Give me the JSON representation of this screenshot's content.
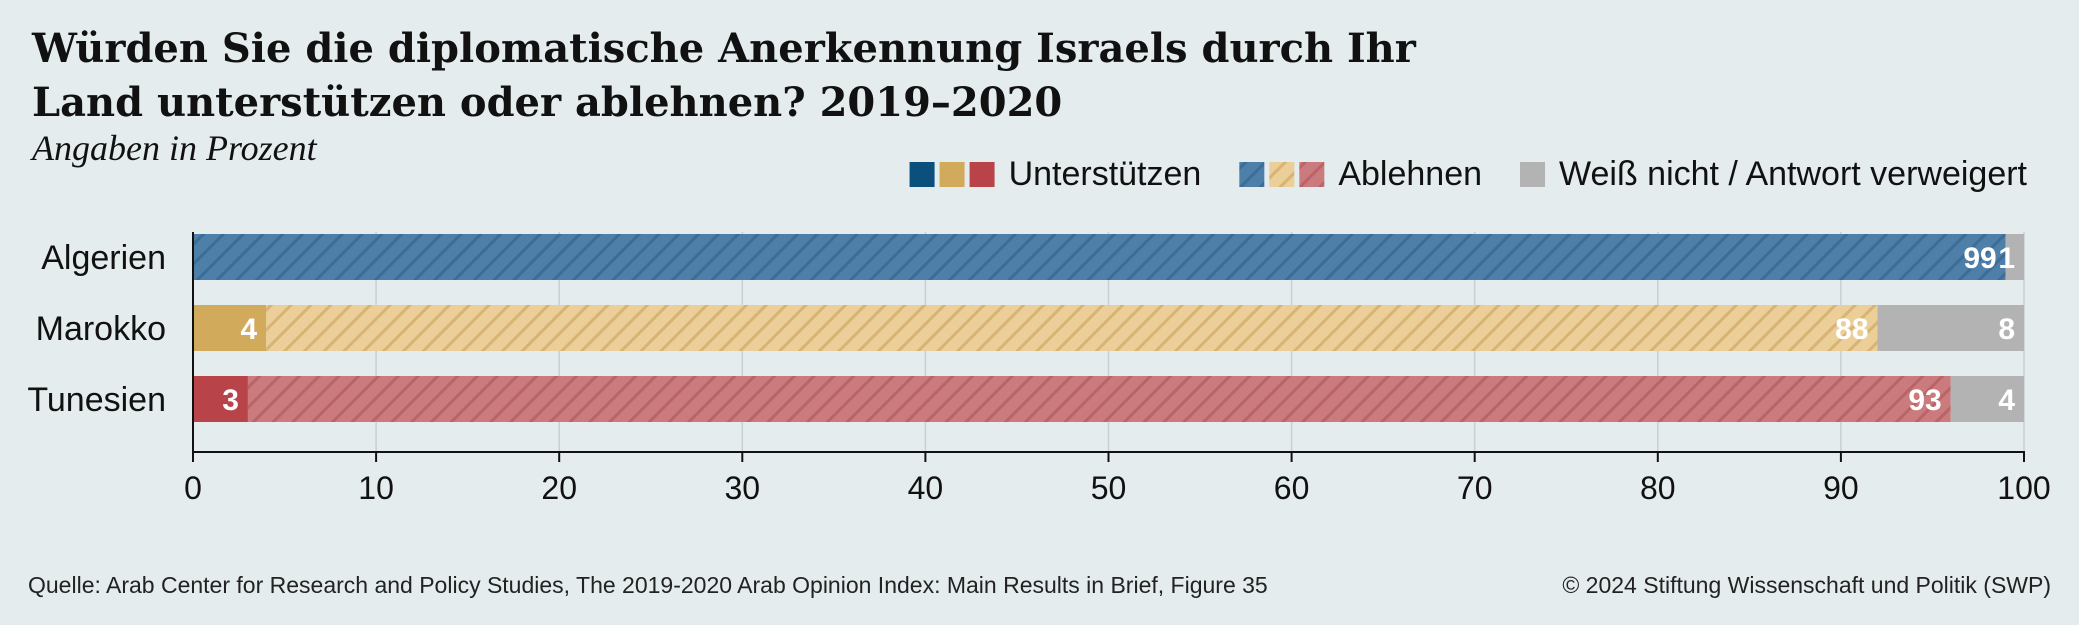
{
  "header": {
    "title": "Würden Sie die diplomatische Anerkennung Israels durch Ihr Land unterstützen oder ablehnen? 2019–2020",
    "subtitle": "Angaben in Prozent"
  },
  "footer": {
    "source": "Quelle: Arab Center for Research and Policy Studies, The 2019-2020 Arab Opinion Index: Main Results in Brief, Figure 35",
    "copyright": "© 2024 Stiftung Wissenschaft und Politik (SWP)"
  },
  "colors": {
    "background": "#e4ecee",
    "support": [
      "#0b4f7c",
      "#d2aa5c",
      "#b8444a"
    ],
    "oppose_base": [
      "#4e7fa8",
      "#eccf98",
      "#cb7b7d"
    ],
    "oppose_stripe": [
      "#3b6d97",
      "#d7b474",
      "#b96466"
    ],
    "unknown": "#b3b3b3",
    "grid": "#c6d1d4"
  },
  "chart_data": {
    "type": "bar",
    "orientation": "horizontal",
    "stacked": true,
    "categories": [
      "Algerien",
      "Marokko",
      "Tunesien"
    ],
    "series": [
      {
        "name": "Unterstützen",
        "values": [
          0,
          4,
          3
        ]
      },
      {
        "name": "Ablehnen",
        "values": [
          99,
          88,
          93
        ]
      },
      {
        "name": "Weiß nicht / Antwort verweigert",
        "values": [
          1,
          8,
          4
        ]
      }
    ],
    "xlim": [
      0,
      100
    ],
    "xticks": [
      0,
      10,
      20,
      30,
      40,
      50,
      60,
      70,
      80,
      90,
      100
    ],
    "grid": true,
    "legend": "top-right",
    "title": "Würden Sie die diplomatische Anerkennung Israels durch Ihr Land unterstützen oder ablehnen? 2019–2020",
    "subtitle": "Angaben in Prozent"
  }
}
